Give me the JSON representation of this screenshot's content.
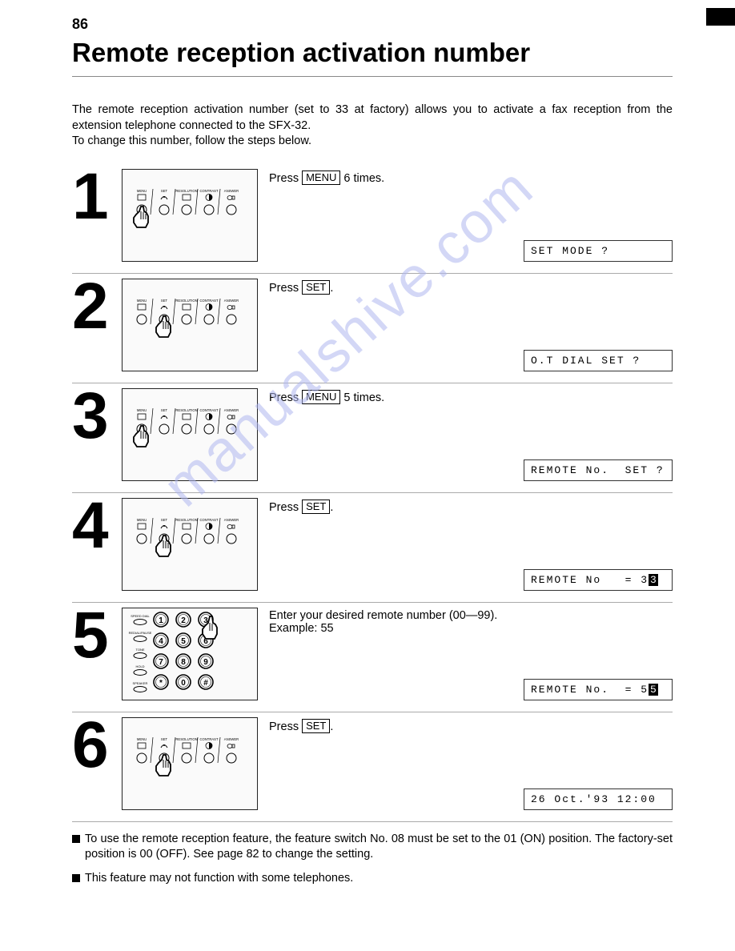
{
  "page_number": "86",
  "title": "Remote reception activation number",
  "intro_line1": "The remote reception activation number (set to 33 at factory) allows you to activate a fax reception from the extension telephone connected to the SFX-32.",
  "intro_line2": "To change this number, follow the steps below.",
  "watermark": "manualshive.com",
  "panel_labels": [
    "MENU",
    "SET",
    "RESOLUTION",
    "CONTRAST",
    "ANSWER"
  ],
  "steps": [
    {
      "num": "1",
      "instruction_pre": "Press ",
      "instruction_key": "MENU",
      "instruction_post": " 6 times.",
      "instruction_extra": "",
      "display": "SET MODE ?",
      "diagram_type": "panel",
      "press_index": 0
    },
    {
      "num": "2",
      "instruction_pre": "Press ",
      "instruction_key": "SET",
      "instruction_post": ".",
      "instruction_extra": "",
      "display": "O.T DIAL SET ?",
      "diagram_type": "panel",
      "press_index": 1
    },
    {
      "num": "3",
      "instruction_pre": "Press ",
      "instruction_key": "MENU",
      "instruction_post": " 5 times.",
      "instruction_extra": "",
      "display": "REMOTE No.  SET ?",
      "diagram_type": "panel",
      "press_index": 0
    },
    {
      "num": "4",
      "instruction_pre": "Press ",
      "instruction_key": "SET",
      "instruction_post": ".",
      "instruction_extra": "",
      "display": "REMOTE No   = 3",
      "display_cursor": "3",
      "diagram_type": "panel",
      "press_index": 1
    },
    {
      "num": "5",
      "instruction_pre": "Enter your desired remote number (00—99).",
      "instruction_key": "",
      "instruction_post": "",
      "instruction_extra": "Example: 55",
      "display": "REMOTE No.  = 5",
      "display_cursor": "5",
      "diagram_type": "keypad",
      "press_index": 2
    },
    {
      "num": "6",
      "instruction_pre": "Press ",
      "instruction_key": "SET",
      "instruction_post": ".",
      "instruction_extra": "",
      "display": "26 Oct.'93 12:00",
      "diagram_type": "panel",
      "press_index": 1
    }
  ],
  "keypad_labels": [
    "SPEED DIAL",
    "REDIAL/PAUSE",
    "TONE",
    "HOLD",
    "SPEAKER"
  ],
  "notes": [
    "To use the remote reception feature, the feature switch No. 08 must be set to the 01 (ON) position. The factory-set position is 00 (OFF). See page 82 to change the setting.",
    "This feature may not function with some telephones."
  ],
  "colors": {
    "text": "#000000",
    "background": "#ffffff",
    "border": "#888888",
    "watermark": "#b0b8f0"
  }
}
